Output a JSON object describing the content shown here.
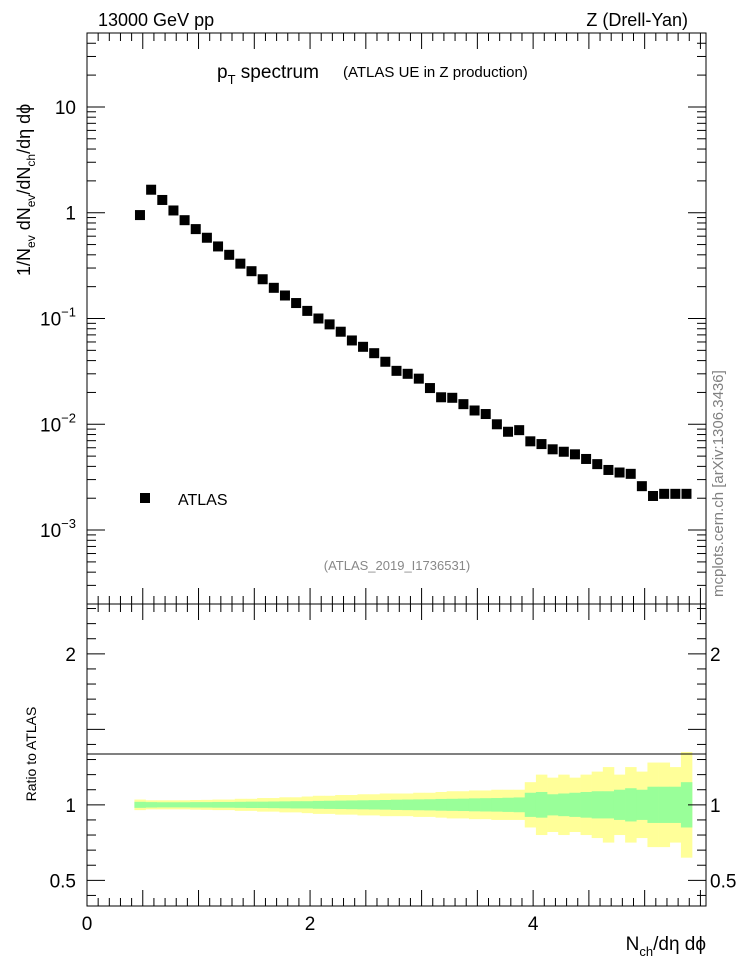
{
  "header": {
    "left": "13000 GeV pp",
    "right": "Z (Drell-Yan)",
    "title_main": "p",
    "title_sub": "T",
    "title_rest": " spectrum",
    "title_extra": "(ATLAS UE in Z production)",
    "analysis_id": "(ATLAS_2019_I1736531)",
    "side_label": "mcplots.cern.ch [arXiv:1306.3436]"
  },
  "colors": {
    "marker": "#000000",
    "band_inner": "#99ff99",
    "band_outer": "#ffff99"
  },
  "chart_data": [
    {
      "type": "scatter",
      "title": "pT spectrum (ATLAS UE in Z production)",
      "ylabel": "1/N_ev dN_ev/dN_ch/dη dϕ",
      "yscale": "log",
      "ylim": [
        0.0002,
        50
      ],
      "xlim": [
        0,
        5.55
      ],
      "yticks": [
        {
          "value": 10,
          "label": "10"
        },
        {
          "value": 1,
          "label": "1"
        },
        {
          "value": 0.1,
          "label": "10",
          "exp": "−1"
        },
        {
          "value": 0.01,
          "label": "10",
          "exp": "−2"
        },
        {
          "value": 0.001,
          "label": "10",
          "exp": "−3"
        }
      ],
      "legend": {
        "position": "bottom-left",
        "entries": [
          "ATLAS"
        ]
      },
      "series": [
        {
          "name": "ATLAS",
          "x": [
            0.475,
            0.575,
            0.675,
            0.775,
            0.875,
            0.975,
            1.075,
            1.175,
            1.275,
            1.375,
            1.475,
            1.575,
            1.675,
            1.775,
            1.875,
            1.975,
            2.075,
            2.175,
            2.275,
            2.375,
            2.475,
            2.575,
            2.675,
            2.775,
            2.875,
            2.975,
            3.075,
            3.175,
            3.275,
            3.375,
            3.475,
            3.575,
            3.675,
            3.775,
            3.875,
            3.975,
            4.075,
            4.175,
            4.275,
            4.375,
            4.475,
            4.575,
            4.675,
            4.775,
            4.875,
            4.975,
            5.075,
            5.175,
            5.275,
            5.375
          ],
          "y": [
            0.95,
            1.65,
            1.32,
            1.05,
            0.85,
            0.7,
            0.58,
            0.48,
            0.4,
            0.33,
            0.28,
            0.235,
            0.195,
            0.165,
            0.14,
            0.118,
            0.1,
            0.088,
            0.075,
            0.062,
            0.054,
            0.047,
            0.039,
            0.032,
            0.03,
            0.027,
            0.022,
            0.018,
            0.0178,
            0.0155,
            0.0135,
            0.0125,
            0.01,
            0.0085,
            0.0088,
            0.0069,
            0.0065,
            0.0058,
            0.0055,
            0.0052,
            0.0047,
            0.0042,
            0.0037,
            0.0035,
            0.0034,
            0.0026,
            0.0021,
            0.0022,
            0.0022,
            0.0022
          ]
        }
      ]
    },
    {
      "type": "area",
      "ylabel": "Ratio to ATLAS",
      "xlabel": "N_ch/dη dϕ",
      "xlim": [
        0,
        5.55
      ],
      "ylim": [
        0.33,
        2.33
      ],
      "xticks": [
        {
          "value": 0,
          "label": "0"
        },
        {
          "value": 2,
          "label": "2"
        },
        {
          "value": 4,
          "label": "4"
        }
      ],
      "yticks": [
        {
          "value": 0.5,
          "label": "0.5"
        },
        {
          "value": 1,
          "label": "1"
        },
        {
          "value": 2,
          "label": "2"
        }
      ],
      "bin_edges": [
        0.425,
        0.525,
        0.625,
        0.725,
        0.825,
        0.925,
        1.025,
        1.125,
        1.225,
        1.325,
        1.425,
        1.525,
        1.625,
        1.725,
        1.825,
        1.925,
        2.025,
        2.125,
        2.225,
        2.325,
        2.425,
        2.525,
        2.625,
        2.725,
        2.825,
        2.925,
        3.025,
        3.125,
        3.225,
        3.325,
        3.425,
        3.525,
        3.625,
        3.725,
        3.825,
        3.925,
        4.025,
        4.125,
        4.225,
        4.325,
        4.425,
        4.525,
        4.625,
        4.725,
        4.825,
        4.925,
        5.025,
        5.125,
        5.225,
        5.325,
        5.425
      ],
      "series": [
        {
          "name": "stat",
          "values": [
            0.02,
            0.018,
            0.017,
            0.017,
            0.017,
            0.018,
            0.018,
            0.019,
            0.019,
            0.02,
            0.021,
            0.021,
            0.022,
            0.023,
            0.024,
            0.024,
            0.026,
            0.027,
            0.028,
            0.029,
            0.03,
            0.031,
            0.032,
            0.034,
            0.035,
            0.036,
            0.037,
            0.039,
            0.04,
            0.041,
            0.043,
            0.044,
            0.045,
            0.047,
            0.049,
            0.08,
            0.085,
            0.07,
            0.075,
            0.08,
            0.085,
            0.09,
            0.09,
            0.1,
            0.11,
            0.1,
            0.12,
            0.12,
            0.12,
            0.15
          ]
        },
        {
          "name": "total",
          "values": [
            0.035,
            0.03,
            0.03,
            0.03,
            0.03,
            0.032,
            0.033,
            0.035,
            0.035,
            0.04,
            0.04,
            0.045,
            0.045,
            0.05,
            0.05,
            0.055,
            0.06,
            0.06,
            0.065,
            0.065,
            0.07,
            0.07,
            0.075,
            0.075,
            0.075,
            0.08,
            0.08,
            0.085,
            0.09,
            0.09,
            0.095,
            0.095,
            0.1,
            0.1,
            0.1,
            0.15,
            0.2,
            0.18,
            0.2,
            0.18,
            0.2,
            0.22,
            0.25,
            0.2,
            0.25,
            0.22,
            0.28,
            0.28,
            0.25,
            0.35
          ]
        }
      ]
    }
  ]
}
